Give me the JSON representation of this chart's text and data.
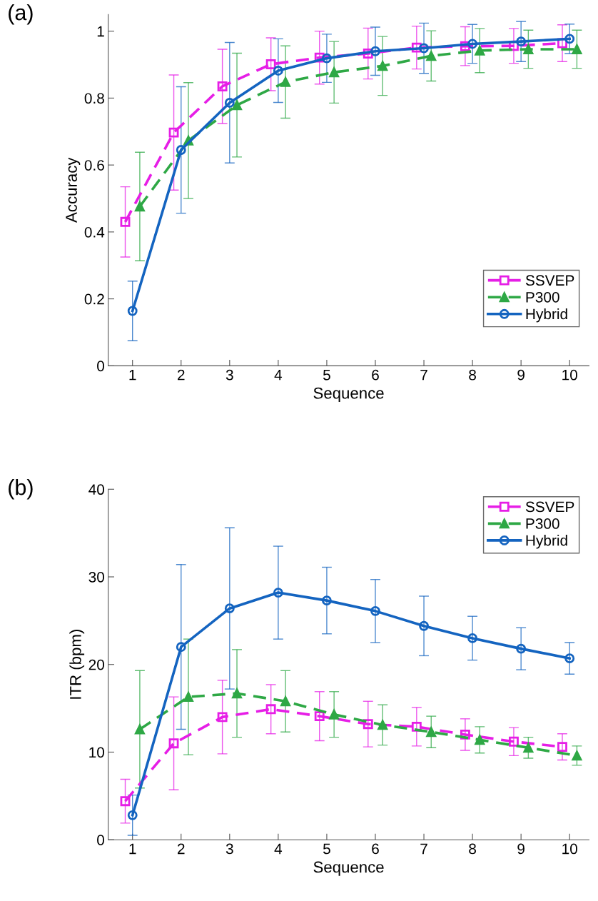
{
  "chart_data": [
    {
      "type": "line",
      "title": "(a)",
      "xlabel": "Sequence",
      "ylabel": "Accuracy",
      "xlim": [
        0.5,
        10.4
      ],
      "xticks": [
        1,
        2,
        3,
        4,
        5,
        6,
        7,
        8,
        9,
        10
      ],
      "ylim": [
        0,
        1.05
      ],
      "yticks": [
        0,
        0.2,
        0.4,
        0.6,
        0.8,
        1
      ],
      "grid": false,
      "legend": "bottom right",
      "series": [
        {
          "name": "SSVEP",
          "color": "#e61ee6",
          "marker": "square",
          "line_style": "dashed",
          "x": [
            0.85,
            1.85,
            2.85,
            3.85,
            4.85,
            5.85,
            6.85,
            7.85,
            8.85,
            9.85
          ],
          "values": [
            0.43,
            0.697,
            0.835,
            0.901,
            0.921,
            0.933,
            0.951,
            0.955,
            0.956,
            0.964
          ],
          "errors": [
            0.105,
            0.172,
            0.111,
            0.079,
            0.079,
            0.076,
            0.064,
            0.058,
            0.052,
            0.055
          ]
        },
        {
          "name": "P300",
          "color": "#2ea845",
          "marker": "triangle",
          "line_style": "dashed",
          "x": [
            1.15,
            2.15,
            3.15,
            4.15,
            5.15,
            6.15,
            7.15,
            8.15,
            9.15,
            10.15
          ],
          "values": [
            0.476,
            0.673,
            0.779,
            0.848,
            0.877,
            0.896,
            0.926,
            0.942,
            0.946,
            0.946
          ],
          "errors": [
            0.162,
            0.173,
            0.155,
            0.108,
            0.092,
            0.088,
            0.075,
            0.066,
            0.057,
            0.057
          ]
        },
        {
          "name": "Hybrid",
          "color": "#1464c0",
          "marker": "circle",
          "line_style": "solid",
          "x": [
            1,
            2,
            3,
            4,
            5,
            6,
            7,
            8,
            9,
            10
          ],
          "values": [
            0.164,
            0.645,
            0.786,
            0.882,
            0.919,
            0.94,
            0.949,
            0.962,
            0.969,
            0.977
          ],
          "errors": [
            0.089,
            0.189,
            0.18,
            0.095,
            0.072,
            0.072,
            0.075,
            0.058,
            0.06,
            0.044
          ]
        }
      ]
    },
    {
      "type": "line",
      "title": "(b)",
      "xlabel": "Sequence",
      "ylabel": "ITR (bpm)",
      "xlim": [
        0.5,
        10.4
      ],
      "xticks": [
        1,
        2,
        3,
        4,
        5,
        6,
        7,
        8,
        9,
        10
      ],
      "ylim": [
        0,
        40
      ],
      "yticks": [
        0,
        10,
        20,
        30,
        40
      ],
      "grid": false,
      "legend": "top right",
      "series": [
        {
          "name": "SSVEP",
          "color": "#e61ee6",
          "marker": "square",
          "line_style": "dashed",
          "x": [
            0.85,
            1.85,
            2.85,
            3.85,
            4.85,
            5.85,
            6.85,
            7.85,
            8.85,
            9.85
          ],
          "values": [
            4.4,
            11.0,
            14.0,
            14.9,
            14.1,
            13.2,
            12.9,
            12.0,
            11.2,
            10.6
          ],
          "errors": [
            2.5,
            5.3,
            4.2,
            2.8,
            2.8,
            2.6,
            2.2,
            1.8,
            1.6,
            1.5
          ]
        },
        {
          "name": "P300",
          "color": "#2ea845",
          "marker": "triangle",
          "line_style": "dashed",
          "x": [
            1.15,
            2.15,
            3.15,
            4.15,
            5.15,
            6.15,
            7.15,
            8.15,
            9.15,
            10.15
          ],
          "values": [
            12.6,
            16.3,
            16.7,
            15.8,
            14.3,
            13.1,
            12.3,
            11.4,
            10.5,
            9.6
          ],
          "errors": [
            6.7,
            6.6,
            5.0,
            3.5,
            2.6,
            2.3,
            1.8,
            1.5,
            1.2,
            1.1
          ]
        },
        {
          "name": "Hybrid",
          "color": "#1464c0",
          "marker": "circle",
          "line_style": "solid",
          "x": [
            1,
            2,
            3,
            4,
            5,
            6,
            7,
            8,
            9,
            10
          ],
          "values": [
            2.8,
            22.0,
            26.4,
            28.2,
            27.3,
            26.1,
            24.4,
            23.0,
            21.8,
            20.7
          ],
          "errors": [
            2.3,
            9.4,
            9.2,
            5.3,
            3.8,
            3.6,
            3.4,
            2.5,
            2.4,
            1.8
          ]
        }
      ]
    }
  ]
}
